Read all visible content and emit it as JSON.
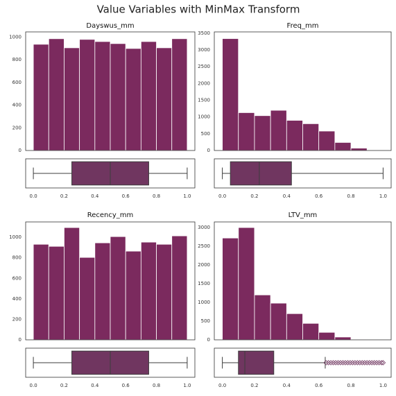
{
  "title": "Value Variables with MinMax Transform",
  "chart_data": [
    {
      "type": "histogram",
      "title": "Dayswus_mm",
      "color": "#7b2a5e",
      "box_color": "#703660",
      "bins": [
        0,
        0.1,
        0.2,
        0.3,
        0.4,
        0.5,
        0.6,
        0.7,
        0.8,
        0.9,
        1
      ],
      "counts": [
        936,
        985,
        905,
        979,
        960,
        942,
        899,
        960,
        905,
        985
      ],
      "xlim": [
        -0.05,
        1.05
      ],
      "ylim": [
        0,
        1045
      ],
      "yticks": [
        0,
        200,
        400,
        600,
        800,
        1000
      ],
      "xticks": [
        {
          "value": 0,
          "label": "0.0"
        },
        0.2,
        0.4,
        0.6,
        0.8,
        {
          "value": 1,
          "label": "1.0"
        }
      ],
      "boxplot": {
        "whislo": 0,
        "q1": 0.25,
        "med": 0.5,
        "q3": 0.75,
        "whishi": 1,
        "fliers": []
      }
    },
    {
      "type": "histogram",
      "title": "Freq_mm",
      "color": "#7b2a5e",
      "box_color": "#703660",
      "bins": [
        0,
        0.1,
        0.2,
        0.3,
        0.4,
        0.5,
        0.6,
        0.7,
        0.8,
        0.9,
        1
      ],
      "counts": [
        3340,
        1130,
        1040,
        1200,
        900,
        800,
        580,
        240,
        70,
        5
      ],
      "xlim": [
        -0.05,
        1.05
      ],
      "ylim": [
        0,
        3540
      ],
      "yticks": [
        0,
        500,
        1000,
        1500,
        2000,
        2500,
        3000,
        3500
      ],
      "xticks": [
        {
          "value": 0,
          "label": "0.0"
        },
        0.2,
        0.4,
        0.6,
        0.8,
        {
          "value": 1,
          "label": "1.0"
        }
      ],
      "boxplot": {
        "whislo": 0,
        "q1": 0.05,
        "med": 0.23,
        "q3": 0.43,
        "whishi": 1,
        "fliers": []
      }
    },
    {
      "type": "histogram",
      "title": "Recency_mm",
      "color": "#7b2a5e",
      "box_color": "#703660",
      "bins": [
        0,
        0.1,
        0.2,
        0.3,
        0.4,
        0.5,
        0.6,
        0.7,
        0.8,
        0.9,
        1
      ],
      "counts": [
        932,
        912,
        1095,
        804,
        946,
        1007,
        865,
        953,
        932,
        1014
      ],
      "xlim": [
        -0.05,
        1.05
      ],
      "ylim": [
        0,
        1150
      ],
      "yticks": [
        0,
        200,
        400,
        600,
        800,
        1000
      ],
      "xticks": [
        {
          "value": 0,
          "label": "0.0"
        },
        0.2,
        0.4,
        0.6,
        0.8,
        {
          "value": 1,
          "label": "1.0"
        }
      ],
      "boxplot": {
        "whislo": 0,
        "q1": 0.25,
        "med": 0.5,
        "q3": 0.75,
        "whishi": 1,
        "fliers": []
      }
    },
    {
      "type": "histogram",
      "title": "LTV_mm",
      "color": "#7b2a5e",
      "box_color": "#703660",
      "bins": [
        0,
        0.1,
        0.2,
        0.3,
        0.4,
        0.5,
        0.6,
        0.7,
        0.8,
        0.9,
        1
      ],
      "counts": [
        2720,
        3000,
        1200,
        980,
        700,
        440,
        200,
        75,
        15,
        5
      ],
      "xlim": [
        -0.05,
        1.05
      ],
      "ylim": [
        0,
        3150
      ],
      "yticks": [
        0,
        500,
        1000,
        1500,
        2000,
        2500,
        3000
      ],
      "xticks": [
        {
          "value": 0,
          "label": "0.0"
        },
        0.2,
        0.4,
        0.6,
        0.8,
        {
          "value": 1,
          "label": "1.0"
        }
      ],
      "boxplot": {
        "whislo": 0,
        "q1": 0.1,
        "med": 0.14,
        "q3": 0.32,
        "whishi": 0.64,
        "fliers": [
          0.645,
          0.66,
          0.675,
          0.69,
          0.705,
          0.72,
          0.735,
          0.75,
          0.765,
          0.78,
          0.795,
          0.81,
          0.825,
          0.84,
          0.855,
          0.87,
          0.885,
          0.9,
          0.915,
          0.93,
          0.945,
          0.96,
          0.975,
          0.99,
          1
        ]
      }
    }
  ]
}
